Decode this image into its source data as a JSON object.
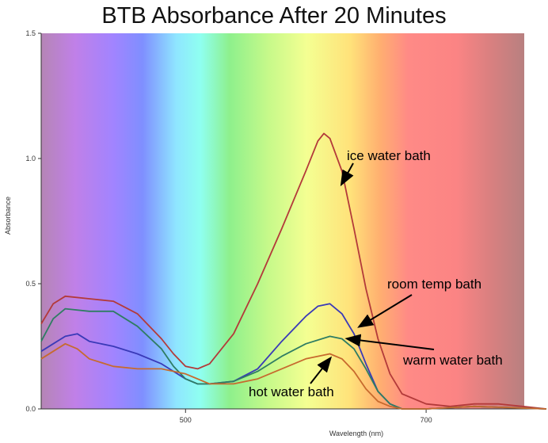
{
  "chart_data": {
    "type": "line",
    "title": "BTB Absorbance After 20 Minutes",
    "xlabel": "Wavelength (nm)",
    "ylabel": "Absorbance",
    "xlim": [
      380,
      800
    ],
    "ylim": [
      0,
      1.5
    ],
    "x_ticks": [
      500,
      700
    ],
    "x_tick_labels": [
      "500",
      "700"
    ],
    "y_ticks": [
      0,
      0.5,
      1.0,
      1.5
    ],
    "y_tick_labels": [
      "0.0",
      "0.5",
      "1.0",
      "1.5"
    ],
    "grid": false,
    "spectrum_background": true,
    "series": [
      {
        "color": "#b33a3a",
        "x": [
          380,
          390,
          400,
          420,
          440,
          460,
          480,
          490,
          500,
          510,
          520,
          540,
          560,
          580,
          600,
          610,
          615,
          620,
          630,
          640,
          650,
          660,
          670,
          680,
          700,
          720,
          740,
          760,
          780,
          800
        ],
        "y": [
          0.34,
          0.42,
          0.45,
          0.44,
          0.43,
          0.38,
          0.28,
          0.22,
          0.17,
          0.16,
          0.18,
          0.3,
          0.5,
          0.72,
          0.95,
          1.07,
          1.1,
          1.08,
          0.95,
          0.72,
          0.48,
          0.28,
          0.14,
          0.06,
          0.02,
          0.01,
          0.02,
          0.02,
          0.01,
          0.0
        ]
      },
      {
        "color": "#3a3ab8",
        "x": [
          380,
          390,
          400,
          410,
          420,
          440,
          460,
          480,
          500,
          510,
          520,
          540,
          560,
          580,
          600,
          610,
          620,
          630,
          640,
          650,
          660,
          670,
          680,
          700,
          740,
          800
        ],
        "y": [
          0.23,
          0.26,
          0.29,
          0.3,
          0.27,
          0.25,
          0.22,
          0.18,
          0.12,
          0.1,
          0.1,
          0.11,
          0.16,
          0.27,
          0.37,
          0.41,
          0.42,
          0.38,
          0.3,
          0.18,
          0.07,
          0.02,
          0.0,
          0.0,
          0.01,
          0.0
        ]
      },
      {
        "color": "#2f7d63",
        "x": [
          380,
          390,
          400,
          420,
          440,
          460,
          480,
          490,
          500,
          510,
          520,
          540,
          560,
          580,
          600,
          620,
          630,
          640,
          650,
          660,
          670,
          680,
          700,
          740,
          800
        ],
        "y": [
          0.27,
          0.36,
          0.4,
          0.39,
          0.39,
          0.33,
          0.24,
          0.17,
          0.12,
          0.1,
          0.1,
          0.11,
          0.15,
          0.21,
          0.26,
          0.29,
          0.28,
          0.24,
          0.16,
          0.07,
          0.02,
          0.0,
          0.0,
          0.01,
          0.0
        ]
      },
      {
        "color": "#c76a2e",
        "x": [
          380,
          390,
          400,
          410,
          420,
          440,
          460,
          480,
          500,
          520,
          540,
          560,
          580,
          600,
          620,
          630,
          640,
          650,
          660,
          670,
          680,
          700,
          740,
          800
        ],
        "y": [
          0.2,
          0.23,
          0.26,
          0.24,
          0.2,
          0.17,
          0.16,
          0.16,
          0.14,
          0.1,
          0.1,
          0.12,
          0.16,
          0.2,
          0.22,
          0.2,
          0.15,
          0.08,
          0.03,
          0.01,
          0.0,
          0.0,
          0.01,
          0.0
        ]
      }
    ],
    "annotations": [
      {
        "text": "ice water bath",
        "arrow_to": [
          630,
          0.9
        ]
      },
      {
        "text": "room temp bath",
        "arrow_to": [
          645,
          0.33
        ]
      },
      {
        "text": "warm water bath",
        "arrow_to": [
          635,
          0.28
        ]
      },
      {
        "text": "hot water bath",
        "arrow_to": [
          620,
          0.2
        ]
      }
    ]
  }
}
